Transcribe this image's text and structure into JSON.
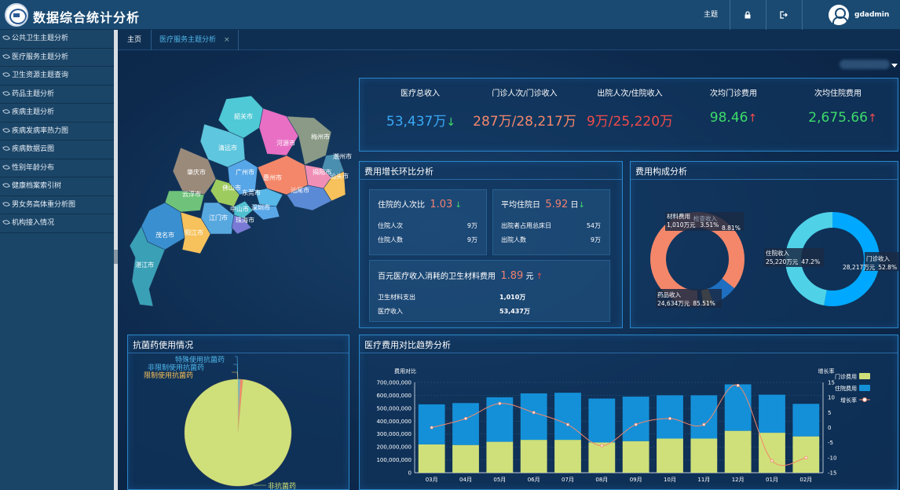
{
  "header": {
    "title": "数据综合统计分析",
    "theme_label": "主题",
    "lock_icon": "lock-icon",
    "logout_icon": "logout-icon",
    "username": "gdadmin"
  },
  "sidebar": {
    "items": [
      {
        "label": "公共卫生主题分析"
      },
      {
        "label": "医疗服务主题分析"
      },
      {
        "label": "卫生资源主题查询"
      },
      {
        "label": "药品主题分析"
      },
      {
        "label": "疾病主题分析"
      },
      {
        "label": "疾病发病率热力图"
      },
      {
        "label": "疾病数据云图"
      },
      {
        "label": "性别年龄分布"
      },
      {
        "label": "健康档案索引树"
      },
      {
        "label": "男女务高体重分析图"
      },
      {
        "label": "机构接入情况"
      }
    ]
  },
  "tabs": [
    {
      "label": "主页"
    },
    {
      "label": "医疗服务主题分析"
    }
  ],
  "map": {
    "cities": [
      "韶关市",
      "河源市",
      "梅州市",
      "潮州市",
      "清远市",
      "揭阳市",
      "汕头市",
      "肇庆市",
      "广州市",
      "惠州市",
      "云浮市",
      "佛山市",
      "东莞市",
      "汕尾市",
      "中山市",
      "深圳市",
      "江门市",
      "珠海市",
      "茂名市",
      "阳江市",
      "湛江市"
    ]
  },
  "kpis": [
    {
      "label": "医疗总收入",
      "value": "53,437万",
      "arrow": "↓",
      "color": "#39a9f5",
      "arrow_color": "#3ddc6a"
    },
    {
      "label": "门诊人次/门诊收入",
      "value": "287万/28,217万",
      "arrow": "",
      "color": "#f4876a"
    },
    {
      "label": "出院人次/住院收入",
      "value": "9万/25,220万",
      "arrow": "",
      "color": "#f24b4b"
    },
    {
      "label": "次均门诊费用",
      "value": "98.46",
      "arrow": "↑",
      "color": "#3ddc6a",
      "arrow_color": "#f24b4b"
    },
    {
      "label": "次均住院费用",
      "value": "2,675.66",
      "arrow": "↑",
      "color": "#3ddc6a",
      "arrow_color": "#f24b4b"
    }
  ],
  "growth": {
    "title": "费用增长环比分析",
    "box1": {
      "label": "住院的人次比",
      "value": "1.03",
      "arrow": "↓",
      "rows": [
        {
          "k": "住院人次",
          "v": "9万"
        },
        {
          "k": "住院人数",
          "v": "9万"
        }
      ]
    },
    "box2": {
      "label": "平均住院日",
      "value": "5.92",
      "unit": "日",
      "arrow": "↓",
      "rows": [
        {
          "k": "出院者占用总床日",
          "v": "54万"
        },
        {
          "k": "出院人数",
          "v": "9万"
        }
      ]
    },
    "box3": {
      "label": "百元医疗收入消耗的卫生材料费用",
      "value": "1.89",
      "unit": "元",
      "arrow": "↑",
      "rows": [
        {
          "k": "卫生材料支出",
          "v": "1,010万"
        },
        {
          "k": "医疗收入",
          "v": "53,437万"
        }
      ]
    }
  },
  "composition": {
    "title": "费用构成分析",
    "left_labels": [
      {
        "name": "材料费用",
        "value": "1,010万元",
        "pct": "3.51%"
      },
      {
        "name": "检查收入",
        "value": "",
        "pct": "8.81%"
      },
      {
        "name": "药品收入",
        "value": "24,634万元",
        "pct": "85.51%"
      }
    ],
    "right_labels": [
      {
        "name": "住院收入",
        "value": "25,220万元",
        "pct": "47.2%"
      },
      {
        "name": "门诊收入",
        "value": "28,217万元",
        "pct": "52.8%"
      }
    ],
    "colors": {
      "drug": "#f4876a",
      "check": "#1e6fc1",
      "material": "#f7c15b",
      "outpatient": "#00a8ff",
      "inpatient": "#4fd2e8"
    }
  },
  "antibiotic": {
    "title": "抗菌药使用情况",
    "labels": [
      "特殊使用抗菌药",
      "非限制使用抗菌药",
      "限制使用抗菌药",
      "非抗菌药"
    ],
    "label_colors": [
      "#4fb6ea",
      "#4fb6ea",
      "#f7c15b",
      "#cfe07a"
    ]
  },
  "trend": {
    "title": "医疗费用对比趋势分析"
  },
  "chart_data": [
    {
      "type": "pie",
      "title": "抗菌药使用情况",
      "labels": [
        "特殊使用抗菌药",
        "非限制使用抗菌药",
        "限制使用抗菌药",
        "非抗菌药"
      ],
      "values": [
        0.3,
        0.4,
        0.8,
        98.5
      ],
      "colors": [
        "#4fb6ea",
        "#4fb6ea",
        "#f4876a",
        "#cfe07a"
      ]
    },
    {
      "type": "bar",
      "title": "医疗费用对比趋势分析",
      "ylabel": "费用对比",
      "y2label": "增长率",
      "categories": [
        "03月",
        "04月",
        "05月",
        "06月",
        "07月",
        "08月",
        "09月",
        "10月",
        "11月",
        "12月",
        "01月",
        "02月"
      ],
      "series": [
        {
          "name": "门诊费用",
          "type": "bar",
          "stack": "fee",
          "color": "#cfe07a",
          "values": [
            220000000,
            215000000,
            240000000,
            255000000,
            255000000,
            235000000,
            245000000,
            265000000,
            265000000,
            325000000,
            310000000,
            282000000
          ]
        },
        {
          "name": "住院费用",
          "type": "bar",
          "stack": "fee",
          "color": "#1490d8",
          "values": [
            310000000,
            325000000,
            345000000,
            360000000,
            365000000,
            340000000,
            345000000,
            335000000,
            335000000,
            360000000,
            295000000,
            252000000
          ]
        },
        {
          "name": "增长率",
          "type": "line",
          "axis": "right",
          "color": "#f4876a",
          "values": [
            0,
            3,
            8,
            5,
            1,
            -6,
            1,
            3,
            1,
            14,
            -11,
            -10
          ]
        }
      ],
      "ylim": [
        0,
        700000000
      ],
      "y2lim": [
        -15,
        15
      ],
      "yticks": [
        "0",
        "100,000,000",
        "200,000,000",
        "300,000,000",
        "400,000,000",
        "500,000,000",
        "600,000,000",
        "700,000,000"
      ],
      "y2ticks": [
        "15",
        "10",
        "5",
        "0",
        "-5",
        "-10",
        "-15"
      ],
      "legend": "top-right"
    }
  ]
}
